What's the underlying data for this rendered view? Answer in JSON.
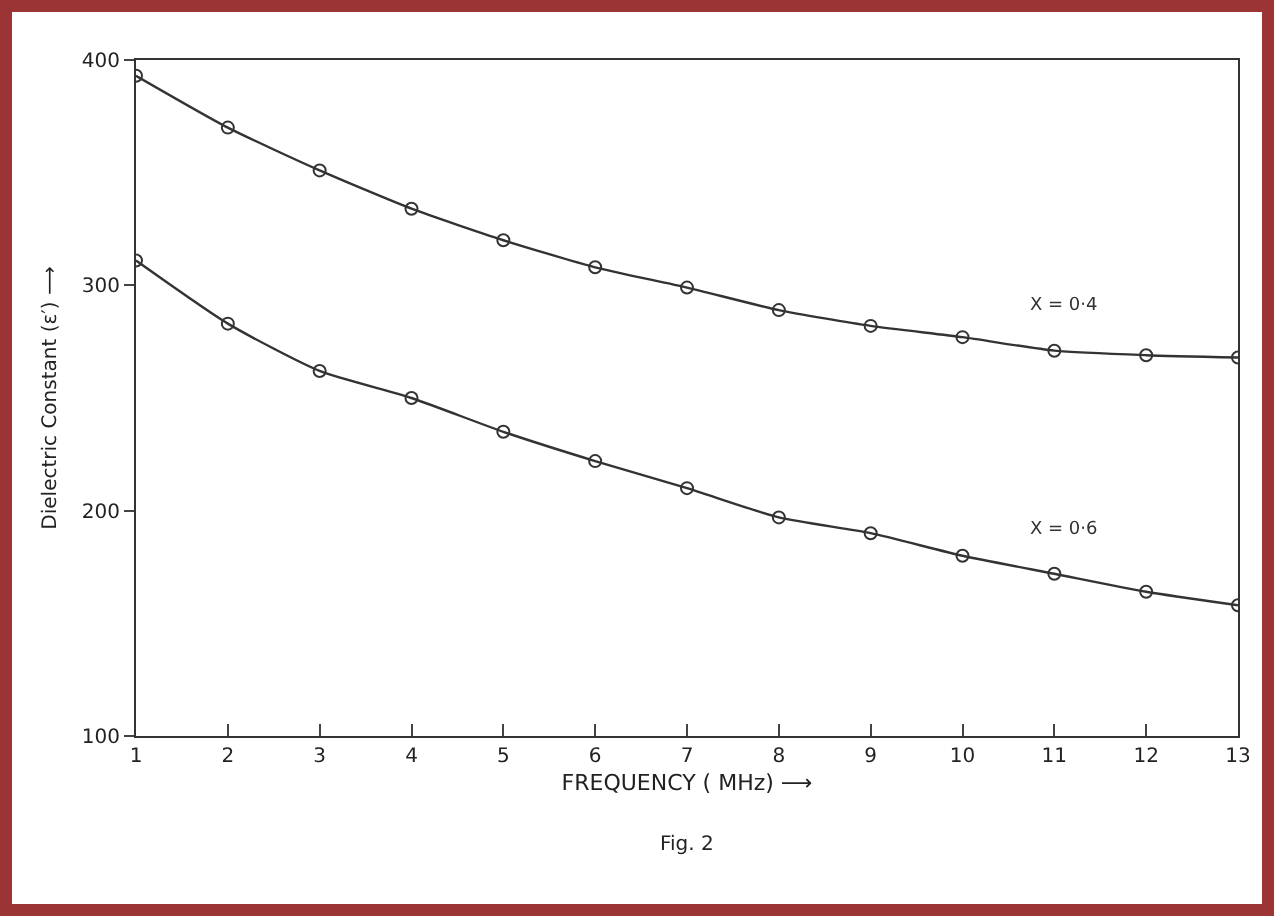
{
  "chart_data": {
    "type": "line",
    "xlabel": "FREQUENCY ( MHz) ⟶",
    "ylabel": "Dielectric Constant (ε′) ⟶",
    "x": [
      1,
      2,
      3,
      4,
      5,
      6,
      7,
      8,
      9,
      10,
      11,
      12,
      13
    ],
    "series": [
      {
        "name": "X = 0·4",
        "color": "#333333",
        "values": [
          393,
          370,
          351,
          334,
          320,
          308,
          299,
          289,
          282,
          277,
          271,
          269,
          268
        ]
      },
      {
        "name": "X = 0·6",
        "color": "#333333",
        "values": [
          311,
          283,
          262,
          250,
          235,
          222,
          210,
          197,
          190,
          180,
          172,
          164,
          158
        ]
      }
    ],
    "xlim": [
      1,
      13
    ],
    "xticks": [
      1,
      2,
      3,
      4,
      5,
      6,
      7,
      8,
      9,
      10,
      11,
      12,
      13
    ],
    "ylim": [
      100,
      400
    ],
    "yticks": [
      100,
      200,
      300,
      400
    ],
    "grid": false,
    "legend": false,
    "marker": "circle",
    "line_style": "solid",
    "annotations": [
      "Fig. 2"
    ]
  }
}
